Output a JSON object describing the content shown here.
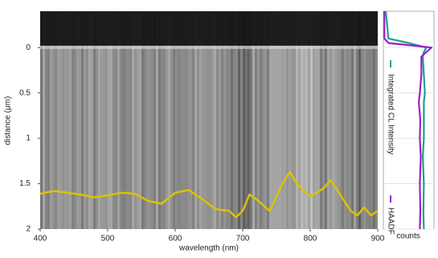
{
  "chart_data": [
    {
      "type": "line",
      "xlabel": "wavelength (nm)",
      "ylabel": "distance (μm)",
      "xlim": [
        400,
        900
      ],
      "xticks": [
        400,
        500,
        600,
        700,
        800,
        900
      ],
      "ylim": [
        -0.4,
        2
      ],
      "yticks": [
        0,
        0.5,
        1,
        1.5,
        2
      ],
      "y_inverted": true,
      "x": [
        400,
        420,
        440,
        460,
        480,
        500,
        520,
        540,
        560,
        580,
        600,
        620,
        640,
        660,
        680,
        690,
        700,
        710,
        720,
        740,
        760,
        770,
        780,
        800,
        820,
        830,
        840,
        860,
        870,
        880,
        890,
        900
      ],
      "series": [
        {
          "color": "#d8c400",
          "values": [
            1.61,
            1.58,
            1.6,
            1.62,
            1.65,
            1.63,
            1.6,
            1.61,
            1.69,
            1.72,
            1.6,
            1.57,
            1.67,
            1.78,
            1.8,
            1.87,
            1.8,
            1.62,
            1.67,
            1.8,
            1.48,
            1.37,
            1.5,
            1.64,
            1.55,
            1.46,
            1.57,
            1.8,
            1.85,
            1.76,
            1.85,
            1.8
          ]
        }
      ]
    },
    {
      "type": "profile",
      "xlabel": "counts",
      "xlim": [
        0,
        1
      ],
      "ylim": [
        -0.4,
        2
      ],
      "yticks": [
        0,
        0.5,
        1,
        1.5,
        2
      ],
      "y_inverted": true,
      "grid": true,
      "y": [
        -0.4,
        -0.1,
        -0.05,
        0,
        0.05,
        0.1,
        0.3,
        0.5,
        0.6,
        0.8,
        1.0,
        1.2,
        1.5,
        1.8,
        2.0
      ],
      "series": [
        {
          "name": "Integrated CL Intensity",
          "color": "#1aa38a",
          "values": [
            0.05,
            0.1,
            0.5,
            0.85,
            0.8,
            0.78,
            0.8,
            0.82,
            0.8,
            0.8,
            0.8,
            0.78,
            0.8,
            0.79,
            0.8
          ]
        },
        {
          "name": "HAADF",
          "color": "#9a1fc9",
          "values": [
            0.02,
            0.02,
            0.1,
            0.95,
            0.85,
            0.75,
            0.75,
            0.72,
            0.7,
            0.73,
            0.72,
            0.74,
            0.72,
            0.73,
            0.72
          ]
        }
      ]
    }
  ]
}
